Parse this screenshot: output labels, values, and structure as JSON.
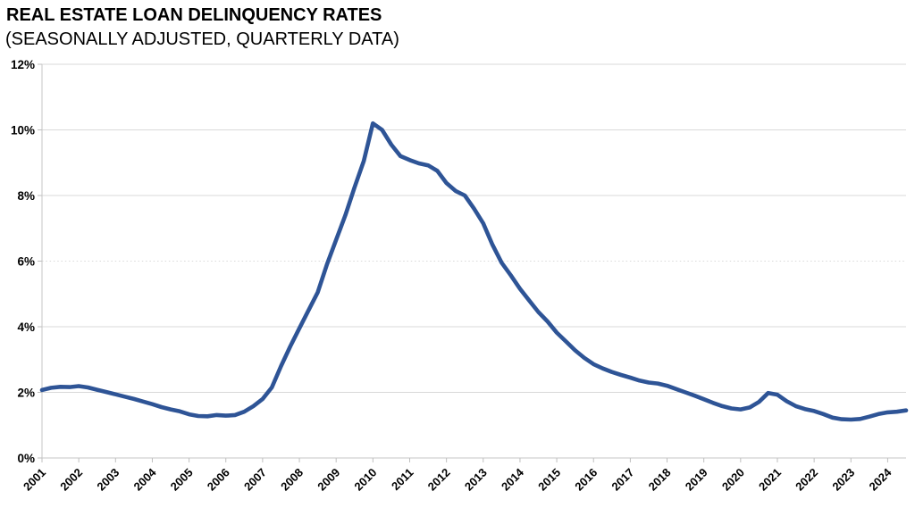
{
  "header": {
    "title": "REAL ESTATE LOAN DELINQUENCY RATES",
    "subtitle": "(SEASONALLY ADJUSTED, QUARTERLY DATA)"
  },
  "chart_data": {
    "type": "line",
    "title": "REAL ESTATE LOAN DELINQUENCY RATES",
    "subtitle": "(SEASONALLY ADJUSTED, QUARTERLY DATA)",
    "unit": "percent",
    "frequency": "quarterly",
    "start_period": "2001 Q1",
    "end_period": "2024 Q3",
    "ylim": [
      0,
      12
    ],
    "y_tick_step": 2,
    "y_tick_labels": [
      "0%",
      "2%",
      "4%",
      "6%",
      "8%",
      "10%",
      "12%"
    ],
    "x_tick_labels": [
      "2001",
      "2002",
      "2003",
      "2004",
      "2005",
      "2006",
      "2007",
      "2008",
      "2009",
      "2010",
      "2011",
      "2012",
      "2013",
      "2014",
      "2015",
      "2016",
      "2017",
      "2018",
      "2019",
      "2020",
      "2021",
      "2022",
      "2023",
      "2024"
    ],
    "grid": "horizontal-only",
    "dotted_gridline_value": 6,
    "legend_position": "none",
    "line_color": "#2E5496",
    "gridline_color": "#D9D9D9",
    "axis_color": "#C6C6C6",
    "tick_color": "#BFBFBF",
    "series": [
      {
        "name": "Real estate loan delinquency rate",
        "values": [
          2.07,
          2.14,
          2.17,
          2.16,
          2.19,
          2.15,
          2.08,
          2.01,
          1.94,
          1.87,
          1.8,
          1.72,
          1.64,
          1.55,
          1.48,
          1.42,
          1.33,
          1.28,
          1.27,
          1.31,
          1.29,
          1.31,
          1.41,
          1.58,
          1.8,
          2.15,
          2.8,
          3.4,
          3.95,
          4.5,
          5.05,
          5.9,
          6.65,
          7.4,
          8.25,
          9.05,
          10.2,
          10.0,
          9.55,
          9.2,
          9.08,
          8.98,
          8.92,
          8.75,
          8.38,
          8.14,
          8.0,
          7.6,
          7.15,
          6.5,
          5.95,
          5.57,
          5.16,
          4.8,
          4.45,
          4.16,
          3.82,
          3.55,
          3.28,
          3.05,
          2.86,
          2.73,
          2.62,
          2.53,
          2.45,
          2.36,
          2.3,
          2.27,
          2.2,
          2.1,
          2.0,
          1.9,
          1.79,
          1.68,
          1.58,
          1.51,
          1.48,
          1.54,
          1.71,
          1.98,
          1.93,
          1.73,
          1.58,
          1.49,
          1.43,
          1.34,
          1.23,
          1.18,
          1.17,
          1.19,
          1.26,
          1.34,
          1.39,
          1.41,
          1.45
        ]
      }
    ]
  }
}
